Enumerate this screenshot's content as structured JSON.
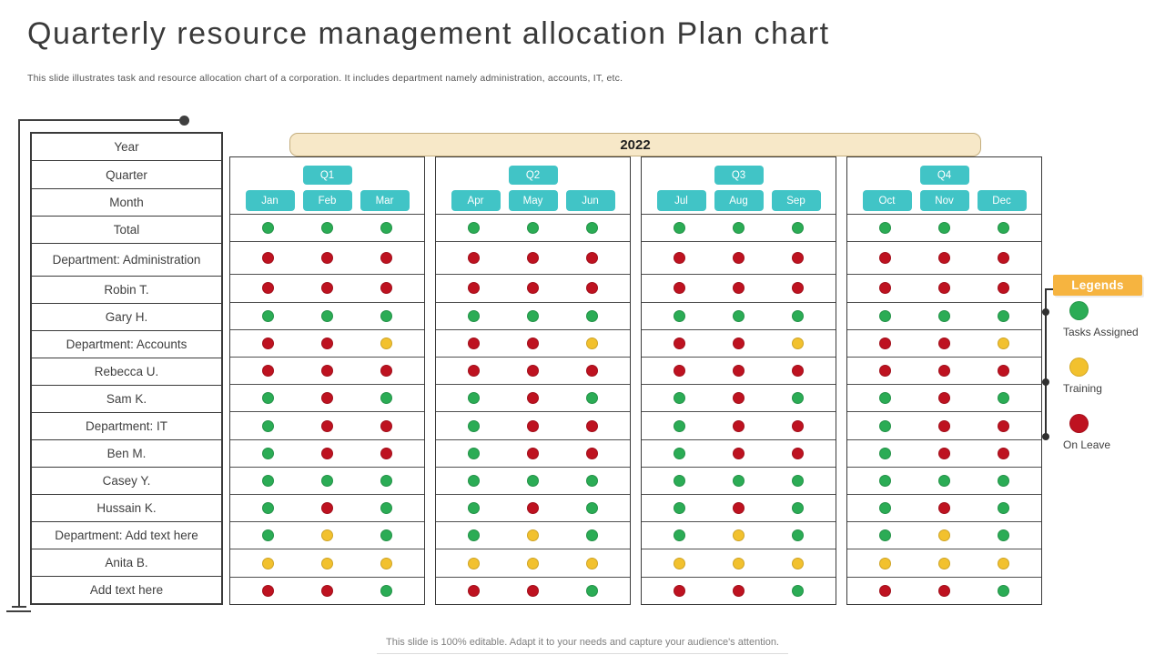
{
  "slide": {
    "title": "Quarterly resource management allocation Plan chart",
    "subtitle": "This slide illustrates task and resource allocation chart of a corporation. It includes department namely administration, accounts, IT, etc.",
    "footer": "This slide is 100% editable. Adapt it to your needs and capture your audience's attention."
  },
  "colors": {
    "teal": "#41C4C6",
    "green": "#2BAC55",
    "yellow": "#F2C12E",
    "red": "#BE1220",
    "banner_fill": "#F7E8C8",
    "banner_border": "#C4AE7E",
    "legend_orange": "#F6B440",
    "line_dark": "#3F3F3F"
  },
  "table": {
    "header_rows": [
      "Year",
      "Quarter",
      "Month"
    ],
    "year": "2022",
    "quarters": [
      {
        "label": "Q1",
        "months": [
          "Jan",
          "Feb",
          "Mar"
        ]
      },
      {
        "label": "Q2",
        "months": [
          "Apr",
          "May",
          "Jun"
        ]
      },
      {
        "label": "Q3",
        "months": [
          "Jul",
          "Aug",
          "Sep"
        ]
      },
      {
        "label": "Q4",
        "months": [
          "Oct",
          "Nov",
          "Dec"
        ]
      }
    ]
  },
  "legend": {
    "title": "Legends",
    "items": [
      {
        "label": "Tasks Assigned",
        "color_key": "green"
      },
      {
        "label": "Training",
        "color_key": "yellow"
      },
      {
        "label": "On Leave",
        "color_key": "red"
      }
    ]
  },
  "chart_data": {
    "type": "table",
    "title": "Quarterly resource management allocation Plan chart",
    "year": "2022",
    "quarters": [
      "Q1",
      "Q2",
      "Q3",
      "Q4"
    ],
    "months": [
      "Jan",
      "Feb",
      "Mar",
      "Apr",
      "May",
      "Jun",
      "Jul",
      "Aug",
      "Sep",
      "Oct",
      "Nov",
      "Dec"
    ],
    "status_legend": {
      "G": "Tasks Assigned",
      "Y": "Training",
      "R": "On Leave"
    },
    "rows": [
      {
        "label": "Total",
        "statuses": [
          "G",
          "G",
          "G",
          "G",
          "G",
          "G",
          "G",
          "G",
          "G",
          "G",
          "G",
          "G"
        ]
      },
      {
        "label": "Department: Administration",
        "statuses": [
          "R",
          "R",
          "R",
          "R",
          "R",
          "R",
          "R",
          "R",
          "R",
          "R",
          "R",
          "R"
        ]
      },
      {
        "label": "Robin T.",
        "statuses": [
          "R",
          "R",
          "R",
          "R",
          "R",
          "R",
          "R",
          "R",
          "R",
          "R",
          "R",
          "R"
        ]
      },
      {
        "label": "Gary H.",
        "statuses": [
          "G",
          "G",
          "G",
          "G",
          "G",
          "G",
          "G",
          "G",
          "G",
          "G",
          "G",
          "G"
        ]
      },
      {
        "label": "Department: Accounts",
        "statuses": [
          "R",
          "R",
          "Y",
          "R",
          "R",
          "Y",
          "R",
          "R",
          "Y",
          "R",
          "R",
          "Y"
        ]
      },
      {
        "label": "Rebecca U.",
        "statuses": [
          "R",
          "R",
          "R",
          "R",
          "R",
          "R",
          "R",
          "R",
          "R",
          "R",
          "R",
          "R"
        ]
      },
      {
        "label": "Sam K.",
        "statuses": [
          "G",
          "R",
          "G",
          "G",
          "R",
          "G",
          "G",
          "R",
          "G",
          "G",
          "R",
          "G"
        ]
      },
      {
        "label": "Department: IT",
        "statuses": [
          "G",
          "R",
          "R",
          "G",
          "R",
          "R",
          "G",
          "R",
          "R",
          "G",
          "R",
          "R"
        ]
      },
      {
        "label": "Ben M.",
        "statuses": [
          "G",
          "R",
          "R",
          "G",
          "R",
          "R",
          "G",
          "R",
          "R",
          "G",
          "R",
          "R"
        ]
      },
      {
        "label": "Casey Y.",
        "statuses": [
          "G",
          "G",
          "G",
          "G",
          "G",
          "G",
          "G",
          "G",
          "G",
          "G",
          "G",
          "G"
        ]
      },
      {
        "label": "Hussain K.",
        "statuses": [
          "G",
          "R",
          "G",
          "G",
          "R",
          "G",
          "G",
          "R",
          "G",
          "G",
          "R",
          "G"
        ]
      },
      {
        "label": "Department: Add text here",
        "statuses": [
          "G",
          "Y",
          "G",
          "G",
          "Y",
          "G",
          "G",
          "Y",
          "G",
          "G",
          "Y",
          "G"
        ]
      },
      {
        "label": "Anita B.",
        "statuses": [
          "Y",
          "Y",
          "Y",
          "Y",
          "Y",
          "Y",
          "Y",
          "Y",
          "Y",
          "Y",
          "Y",
          "Y"
        ]
      },
      {
        "label": "Add text here",
        "statuses": [
          "R",
          "R",
          "G",
          "R",
          "R",
          "G",
          "R",
          "R",
          "G",
          "R",
          "R",
          "G"
        ]
      }
    ]
  }
}
